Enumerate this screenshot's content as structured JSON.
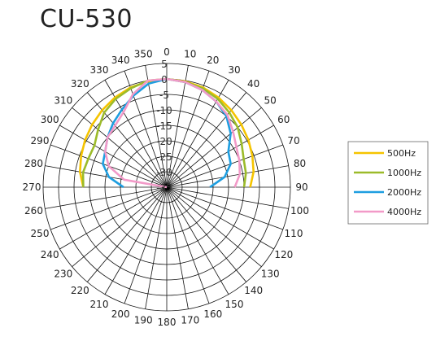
{
  "chart_data": {
    "type": "polar",
    "title": "CU-530",
    "angle_ticks": [
      0,
      10,
      20,
      30,
      40,
      50,
      60,
      70,
      80,
      90,
      100,
      110,
      120,
      130,
      140,
      150,
      160,
      170,
      180,
      190,
      200,
      210,
      220,
      230,
      240,
      250,
      260,
      270,
      280,
      290,
      300,
      310,
      320,
      330,
      340,
      350
    ],
    "radial_ticks": [
      5,
      0,
      -5,
      -10,
      -15,
      -20,
      -25,
      -30,
      -35
    ],
    "radial_tick_labels": [
      "5",
      "0",
      "-5",
      "-10",
      "-15",
      "-20",
      "-25",
      "-30",
      "-35"
    ],
    "rlim": [
      -35,
      5
    ],
    "angle_range": [
      0,
      360
    ],
    "grid": true,
    "legend": "right",
    "series": [
      {
        "name": "500Hz",
        "color": "#f5c400",
        "angles": [
          270,
          280,
          290,
          300,
          310,
          320,
          330,
          340,
          350,
          0,
          10,
          20,
          30,
          40,
          50,
          60,
          70,
          80,
          90
        ],
        "values": [
          -8,
          -6.5,
          -5.5,
          -4.5,
          -3.5,
          -2.5,
          -1.5,
          -0.7,
          -0.3,
          0,
          -0.3,
          -0.7,
          -1.5,
          -2.5,
          -3.5,
          -4.5,
          -5.5,
          -6.5,
          -8
        ]
      },
      {
        "name": "1000Hz",
        "color": "#9cbb2a",
        "angles": [
          270,
          280,
          290,
          300,
          310,
          320,
          330,
          340,
          350,
          0,
          10,
          20,
          30,
          40,
          50,
          60,
          70,
          80,
          90
        ],
        "values": [
          -8,
          -7.5,
          -8,
          -8,
          -6,
          -3.5,
          -2,
          -1,
          0,
          0,
          -0.5,
          -1,
          -2,
          -3.5,
          -5,
          -7,
          -8.5,
          -9,
          -10
        ]
      },
      {
        "name": "2000Hz",
        "color": "#1e9ee0",
        "angles": [
          270,
          280,
          290,
          300,
          310,
          320,
          330,
          340,
          350,
          0,
          10,
          20,
          30,
          40,
          50,
          60,
          70,
          80,
          90
        ],
        "values": [
          -21,
          -16,
          -13,
          -12,
          -10,
          -8,
          -6,
          -3.5,
          -1,
          0,
          -0.5,
          -1.5,
          -3,
          -5,
          -8,
          -12,
          -13,
          -16,
          -21
        ]
      },
      {
        "name": "4000Hz",
        "color": "#f29ac8",
        "angles": [
          270,
          280,
          290,
          300,
          310,
          320,
          330,
          340,
          350,
          0,
          10,
          20,
          30,
          40,
          50,
          60,
          70,
          80,
          90
        ],
        "values": [
          -35,
          -21,
          -15,
          -12,
          -10,
          -9,
          -7,
          -3,
          0,
          0,
          -0.5,
          -1.5,
          -3,
          -4.5,
          -7,
          -9,
          -10,
          -11,
          -13
        ]
      }
    ]
  },
  "legend": {
    "items": [
      {
        "label": "500Hz",
        "color": "#f5c400"
      },
      {
        "label": "1000Hz",
        "color": "#9cbb2a"
      },
      {
        "label": "2000Hz",
        "color": "#1e9ee0"
      },
      {
        "label": "4000Hz",
        "color": "#f29ac8"
      }
    ]
  }
}
